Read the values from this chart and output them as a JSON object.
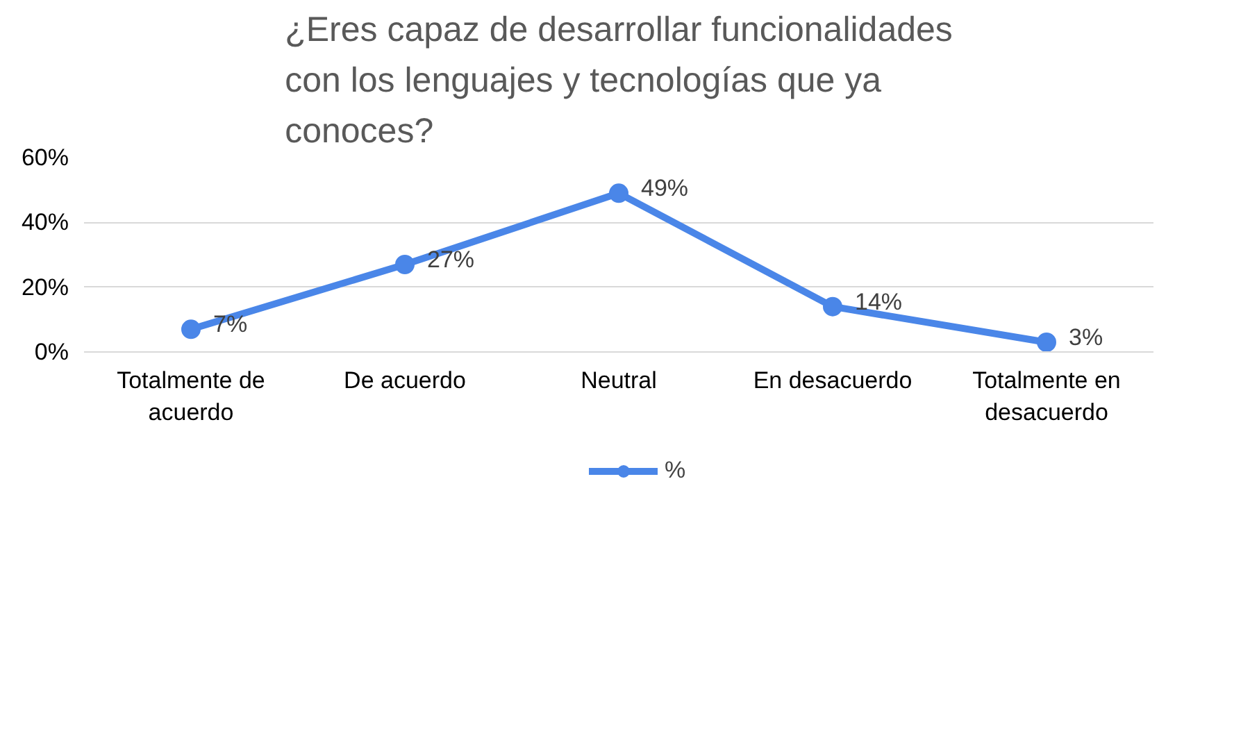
{
  "chart_data": {
    "type": "line",
    "title": "¿Eres capaz de desarrollar funcionalidades con los lenguajes y tecnologías que ya conoces?",
    "categories": [
      "Totalmente de acuerdo",
      "De acuerdo",
      "Neutral",
      "En desacuerdo",
      "Totalmente en desacuerdo"
    ],
    "series": [
      {
        "name": "%",
        "color": "#4a86e8",
        "values": [
          7,
          27,
          49,
          14,
          3
        ],
        "value_labels": [
          "7%",
          "27%",
          "49%",
          "14%",
          "3%"
        ]
      }
    ],
    "ylim": [
      0,
      60
    ],
    "yticks": [
      {
        "value": 0,
        "label": "0%"
      },
      {
        "value": 20,
        "label": "20%"
      },
      {
        "value": 40,
        "label": "40%"
      },
      {
        "value": 60,
        "label": "60%"
      }
    ],
    "grid": "y",
    "legend": "bottom",
    "marker": "circle",
    "line_style": "solid"
  }
}
